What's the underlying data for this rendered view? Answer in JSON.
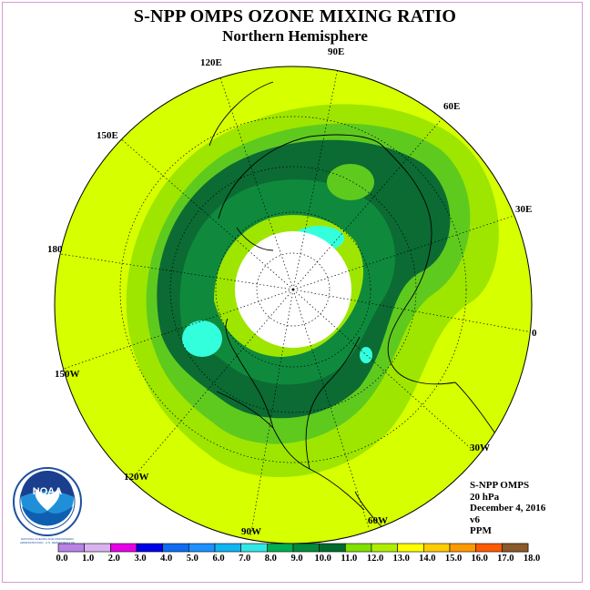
{
  "title": "S-NPP OMPS OZONE MIXING RATIO",
  "subtitle": "Northern Hemisphere",
  "longitude_labels": [
    "90E",
    "60E",
    "30E",
    "0",
    "30W",
    "60W",
    "90W",
    "120W",
    "150W",
    "180",
    "150E",
    "120E"
  ],
  "info": {
    "instrument": "S-NPP OMPS",
    "level": "20 hPa",
    "date": "December 4, 2016",
    "version": "v6",
    "units": "PPM"
  },
  "logo": {
    "text": "NOAA",
    "ring_text": "NATIONAL OCEANIC AND ATMOSPHERIC ADMINISTRATION · U.S. DEPARTMENT OF COMMERCE"
  },
  "colorbar": {
    "ticks": [
      "0.0",
      "1.0",
      "2.0",
      "3.0",
      "4.0",
      "5.0",
      "6.0",
      "7.0",
      "8.0",
      "9.0",
      "10.0",
      "11.0",
      "12.0",
      "13.0",
      "14.0",
      "15.0",
      "16.0",
      "17.0",
      "18.0"
    ],
    "colors": [
      "#b883e6",
      "#d9b3f0",
      "#e600e6",
      "#0000e6",
      "#0f6cf0",
      "#1e90ff",
      "#0fb4f0",
      "#33e6e6",
      "#00ad52",
      "#008b3a",
      "#006b2e",
      "#80e000",
      "#b0ee00",
      "#ffff00",
      "#ffcc00",
      "#ff9900",
      "#ff5a00",
      "#ff0000",
      "#8b5a2b"
    ]
  },
  "colors": {
    "background_map": "#d6ff00",
    "ring_light": "#9ee600",
    "ring_mid": "#5fca1e",
    "ring_dark": "#0f8a3c",
    "ring_darkest": "#0b6b33",
    "cyan_patch": "#33ffdd",
    "polar_night": "#ffffff",
    "frame": "#d79bd7"
  }
}
